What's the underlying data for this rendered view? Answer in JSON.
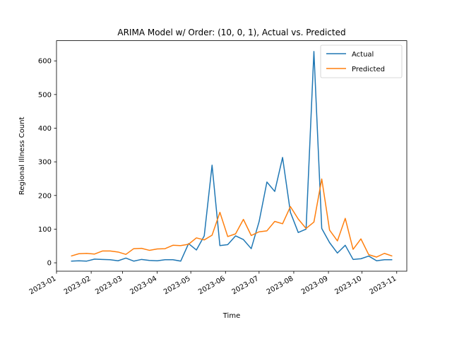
{
  "chart_data": {
    "type": "line",
    "title": "ARIMA Model w/ Order: (10, 0, 1), Actual vs. Predicted",
    "xlabel": "Time",
    "ylabel": "Regional Illness Count",
    "ylim": [
      -25,
      660
    ],
    "xlim": [
      "2023-01-01",
      "2023-11-10"
    ],
    "yticks": [
      0,
      100,
      200,
      300,
      400,
      500,
      600
    ],
    "xticks": [
      "2023-01",
      "2023-02",
      "2023-03",
      "2023-04",
      "2023-05",
      "2023-06",
      "2023-07",
      "2023-08",
      "2023-09",
      "2023-10",
      "2023-11"
    ],
    "legend_position": "top-right",
    "grid": false,
    "x": [
      "2023-01-14",
      "2023-01-21",
      "2023-01-28",
      "2023-02-04",
      "2023-02-11",
      "2023-02-18",
      "2023-02-25",
      "2023-03-04",
      "2023-03-11",
      "2023-03-18",
      "2023-03-25",
      "2023-04-01",
      "2023-04-08",
      "2023-04-15",
      "2023-04-22",
      "2023-04-29",
      "2023-05-06",
      "2023-05-13",
      "2023-05-20",
      "2023-05-27",
      "2023-06-03",
      "2023-06-10",
      "2023-06-17",
      "2023-06-24",
      "2023-07-01",
      "2023-07-08",
      "2023-07-15",
      "2023-07-22",
      "2023-07-29",
      "2023-08-05",
      "2023-08-12",
      "2023-08-19",
      "2023-08-26",
      "2023-09-02",
      "2023-09-09",
      "2023-09-16",
      "2023-09-23",
      "2023-09-30",
      "2023-10-07",
      "2023-10-14",
      "2023-10-21",
      "2023-10-28"
    ],
    "series": [
      {
        "name": "Actual",
        "color": "#1f77b4",
        "values": [
          5,
          6,
          5,
          11,
          10,
          9,
          6,
          14,
          5,
          10,
          7,
          6,
          9,
          9,
          5,
          57,
          38,
          80,
          290,
          51,
          54,
          80,
          69,
          42,
          122,
          240,
          212,
          313,
          150,
          90,
          100,
          628,
          102,
          60,
          29,
          52,
          10,
          12,
          20,
          6,
          9,
          9
        ]
      },
      {
        "name": "Predicted",
        "color": "#ff7f0e",
        "values": [
          20,
          27,
          28,
          26,
          35,
          35,
          32,
          25,
          42,
          43,
          37,
          41,
          42,
          52,
          51,
          55,
          74,
          68,
          82,
          150,
          78,
          86,
          129,
          81,
          92,
          95,
          123,
          116,
          167,
          130,
          102,
          121,
          249,
          97,
          65,
          132,
          40,
          71,
          24,
          17,
          28,
          20
        ]
      }
    ]
  }
}
